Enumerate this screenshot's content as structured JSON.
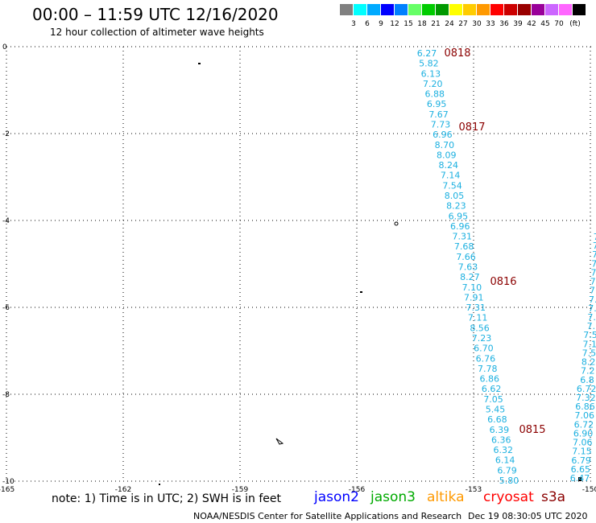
{
  "header": {
    "title": "00:00 – 11:59 UTC 12/16/2020",
    "subtitle": "12 hour collection of altimeter wave heights"
  },
  "colorbar": {
    "unit": "(ft)",
    "colors": [
      "#808080",
      "#00ffff",
      "#00aaff",
      "#0000ff",
      "#0080ff",
      "#66ff66",
      "#00cc00",
      "#009900",
      "#ffff00",
      "#ffcc00",
      "#ff9900",
      "#ff0000",
      "#cc0000",
      "#990000",
      "#990099",
      "#cc66ff",
      "#ff66ff",
      "#000000"
    ],
    "labels": [
      "3",
      "6",
      "9",
      "12",
      "15",
      "18",
      "21",
      "24",
      "27",
      "30",
      "33",
      "36",
      "39",
      "42",
      "45",
      "70"
    ]
  },
  "axes": {
    "x_ticks": [
      "-165",
      "-162",
      "-159",
      "-156",
      "-153",
      "-150"
    ],
    "y_ticks": [
      "0",
      "-2",
      "-4",
      "-6",
      "-8",
      "-10"
    ]
  },
  "track_main": {
    "time_labels": [
      "0818",
      "0817",
      "0816",
      "0815"
    ],
    "values": [
      "6.27",
      "5.82",
      "6.13",
      "7.20",
      "6.88",
      "6.95",
      "7.67",
      "7.73",
      "6.96",
      "8.70",
      "8.09",
      "8.24",
      "7.14",
      "7.54",
      "8.05",
      "8.23",
      "6.95",
      "6.96",
      "7.31",
      "7.68",
      "7.66",
      "7.63",
      "8.27",
      "7.10",
      "7.91",
      "7.31",
      "7.11",
      "8.56",
      "7.23",
      "6.70",
      "6.76",
      "7.78",
      "6.86",
      "6.62",
      "7.05",
      "5.45",
      "6.68",
      "6.39",
      "6.36",
      "6.32",
      "6.14",
      "6.79",
      "5.80"
    ]
  },
  "track_right": {
    "values": [
      "7.",
      "7.",
      "7.",
      "7.",
      "7.",
      "7.",
      "7.",
      "7.",
      "7.",
      "7.",
      "7.",
      "7.5",
      "7.1",
      "7.5",
      "8.2",
      "7.2",
      "6.8",
      "6.72",
      "7.32",
      "6.86",
      "7.06",
      "6.72",
      "6.90",
      "7.06",
      "7.15",
      "6.79",
      "6.65",
      "6.47"
    ]
  },
  "legend": {
    "note": "note: 1) Time is in UTC; 2) SWH is in feet",
    "satellites": [
      {
        "name": "jason2",
        "color": "#0000ff"
      },
      {
        "name": "jason3",
        "color": "#00aa00"
      },
      {
        "name": "altika",
        "color": "#ff9900"
      },
      {
        "name": "cryosat",
        "color": "#ff0000"
      },
      {
        "name": "s3a",
        "color": "#8b0000"
      }
    ]
  },
  "footer": {
    "credit": "NOAA/NESDIS Center for Satellite Applications and Research",
    "date": "Dec 19 08:30:05 UTC 2020"
  }
}
